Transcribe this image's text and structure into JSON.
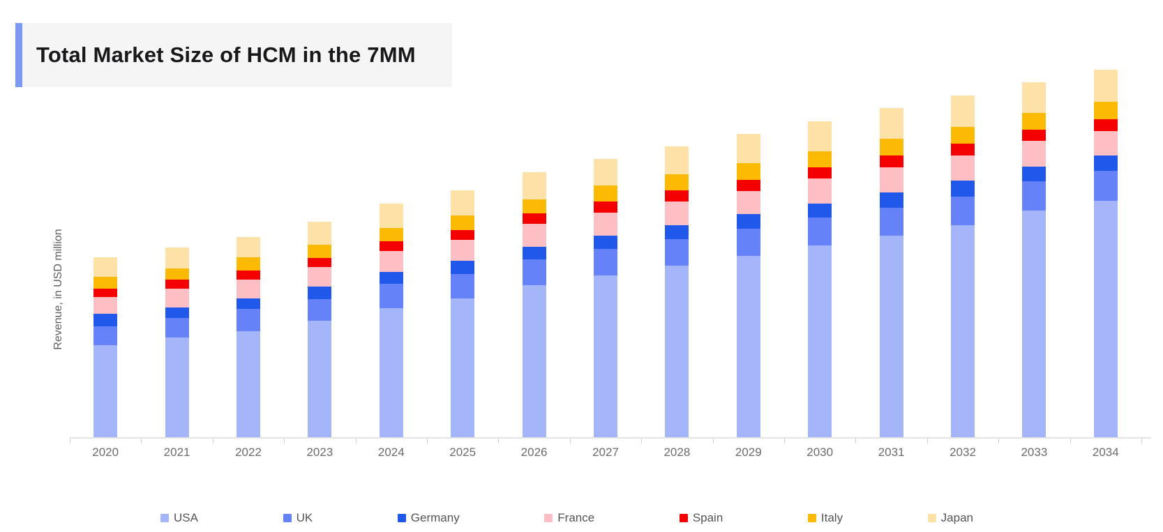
{
  "chart_data": {
    "type": "bar",
    "stacked": true,
    "title": "Total Market Size of HCM in the 7MM",
    "xlabel": "",
    "ylabel": "Revenue, in USD million",
    "categories": [
      "2020",
      "2021",
      "2022",
      "2023",
      "2024",
      "2025",
      "2026",
      "2027",
      "2028",
      "2029",
      "2030",
      "2031",
      "2032",
      "2033",
      "2034"
    ],
    "series": [
      {
        "name": "USA",
        "color": "#a5b5fa",
        "values": [
          132,
          143,
          152,
          167,
          185,
          199,
          218,
          232,
          246,
          260,
          275,
          289,
          304,
          325,
          339
        ]
      },
      {
        "name": "UK",
        "color": "#6682f8",
        "values": [
          27,
          28,
          32,
          31,
          35,
          35,
          37,
          38,
          38,
          39,
          40,
          40,
          41,
          42,
          43
        ]
      },
      {
        "name": "Germany",
        "color": "#2158ec",
        "values": [
          18,
          15,
          15,
          18,
          17,
          19,
          18,
          19,
          20,
          21,
          20,
          22,
          23,
          21,
          22
        ]
      },
      {
        "name": "France",
        "color": "#fdbfc3",
        "values": [
          24,
          27,
          27,
          28,
          30,
          30,
          33,
          33,
          34,
          33,
          36,
          36,
          36,
          37,
          35
        ]
      },
      {
        "name": "Spain",
        "color": "#f40000",
        "values": [
          12,
          13,
          13,
          13,
          14,
          14,
          15,
          16,
          16,
          16,
          16,
          17,
          17,
          16,
          17
        ]
      },
      {
        "name": "Italy",
        "color": "#fcba04",
        "values": [
          17,
          16,
          19,
          19,
          19,
          21,
          20,
          23,
          23,
          24,
          23,
          24,
          24,
          24,
          25
        ]
      },
      {
        "name": "Japan",
        "color": "#fde1a7",
        "values": [
          28,
          30,
          29,
          33,
          35,
          36,
          39,
          38,
          40,
          42,
          43,
          44,
          45,
          44,
          46
        ]
      }
    ],
    "ylim": [
      0,
      560
    ],
    "y_tick_labels_shown": false,
    "grid": false,
    "legend_position": "bottom",
    "units_note": "values estimated in relative units; no y-axis tick labels visible"
  },
  "colors": {
    "title_accent": "#7d9af3",
    "title_background": "#f5f5f6",
    "axis_line": "#e3e3e5",
    "tick_mark": "#cccccd",
    "axis_label_text": "#6b6b6b",
    "legend_text": "#545454"
  }
}
